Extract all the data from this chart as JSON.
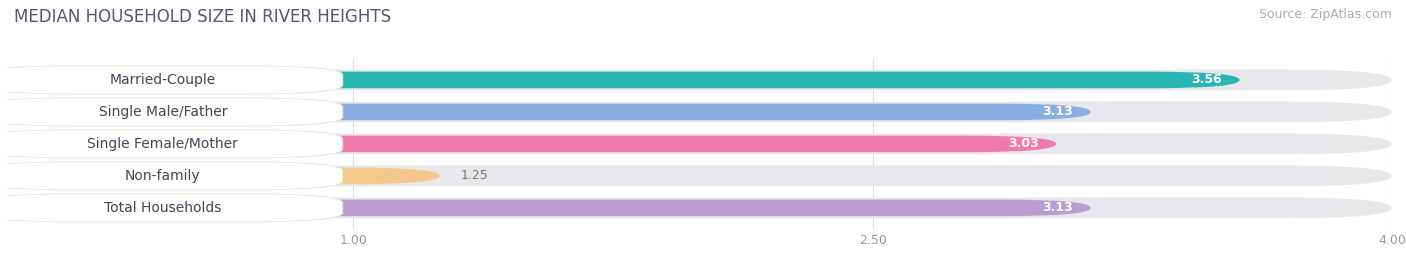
{
  "title": "MEDIAN HOUSEHOLD SIZE IN RIVER HEIGHTS",
  "source": "Source: ZipAtlas.com",
  "categories": [
    "Married-Couple",
    "Single Male/Father",
    "Single Female/Mother",
    "Non-family",
    "Total Households"
  ],
  "values": [
    3.56,
    3.13,
    3.03,
    1.25,
    3.13
  ],
  "bar_colors": [
    "#2ab5b5",
    "#8aaee0",
    "#f07aaa",
    "#f5c98e",
    "#b89ed0"
  ],
  "bar_bg_color": "#e8e8ec",
  "text_colors": [
    "#2ab5b5",
    "#8aaee0",
    "#e06090",
    "#c8963c",
    "#9070b8"
  ],
  "xlim": [
    0,
    4.0
  ],
  "xticks": [
    1.0,
    2.5,
    4.0
  ],
  "title_fontsize": 12,
  "source_fontsize": 9,
  "label_fontsize": 10,
  "value_fontsize": 9,
  "tick_fontsize": 9,
  "background_color": "#ffffff",
  "title_color": "#555577"
}
